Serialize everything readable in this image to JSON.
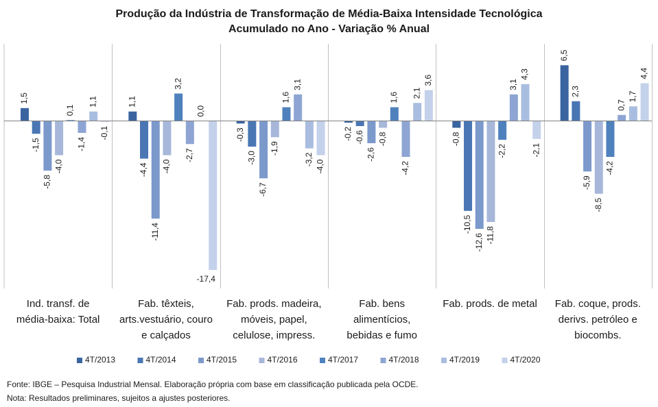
{
  "chart_data": {
    "type": "bar",
    "title": "Produção da Indústria de Transformação de Média-Baixa Intensidade Tecnológica",
    "subtitle": "Acumulado no Ano - Variação % Anual",
    "categories": [
      [
        "Ind. transf. de",
        "média-baixa: Total"
      ],
      [
        "Fab. têxteis,",
        "arts.vestuário, couro",
        "e calçados"
      ],
      [
        "Fab. prods. madeira,",
        "móveis, papel,",
        "celulose, impress."
      ],
      [
        "Fab. bens",
        "alimentícios,",
        "bebidas e fumo"
      ],
      [
        "Fab. prods. de metal"
      ],
      [
        "Fab. coque, prods.",
        "derivs. petróleo e",
        "biocombs."
      ]
    ],
    "series": [
      {
        "name": "4T/2013",
        "color": "#3a64a0",
        "values": [
          1.5,
          1.1,
          -0.3,
          -0.2,
          -0.8,
          6.5
        ],
        "labels": [
          "1,5",
          "1,1",
          "-0,3",
          "-0,2",
          "-0,8",
          "6,5"
        ]
      },
      {
        "name": "4T/2014",
        "color": "#4a76b4",
        "values": [
          -1.5,
          -4.4,
          -3.0,
          -0.6,
          -10.5,
          2.3
        ],
        "labels": [
          "-1,5",
          "-4,4",
          "-3,0",
          "-0,6",
          "-10,5",
          "2,3"
        ]
      },
      {
        "name": "4T/2015",
        "color": "#7c99cc",
        "values": [
          -5.8,
          -11.4,
          -6.7,
          -2.6,
          -12.6,
          -5.9
        ],
        "labels": [
          "-5,8",
          "-11,4",
          "-6,7",
          "-2,6",
          "-12,6",
          "-5,9"
        ]
      },
      {
        "name": "4T/2016",
        "color": "#a7b7da",
        "values": [
          -4.0,
          -4.0,
          -1.9,
          -0.8,
          -11.8,
          -8.5
        ],
        "labels": [
          "-4,0",
          "-4,0",
          "-1,9",
          "-0,8",
          "-11,8",
          "-8,5"
        ]
      },
      {
        "name": "4T/2017",
        "color": "#4f81bd",
        "values": [
          0.1,
          3.2,
          1.6,
          1.6,
          -2.2,
          -4.2
        ],
        "labels": [
          "0,1",
          "3,2",
          "1,6",
          "1,6",
          "-2,2",
          "-4,2"
        ]
      },
      {
        "name": "4T/2018",
        "color": "#8ea5d3",
        "values": [
          -1.4,
          -2.7,
          3.1,
          -4.2,
          3.1,
          0.7
        ],
        "labels": [
          "-1,4",
          "-2,7",
          "3,1",
          "-4,2",
          "3,1",
          "0,7"
        ]
      },
      {
        "name": "4T/2019",
        "color": "#a9bde0",
        "values": [
          1.1,
          0.0,
          -3.2,
          2.1,
          4.3,
          1.7
        ],
        "labels": [
          "1,1",
          "0,0",
          "-3,2",
          "2,1",
          "4,3",
          "1,7"
        ]
      },
      {
        "name": "4T/2020",
        "color": "#c4d1ea",
        "values": [
          -0.1,
          -17.4,
          -4.0,
          3.6,
          -2.1,
          4.4
        ],
        "labels": [
          "-0,1",
          "-17,4",
          "-4,0",
          "3,6",
          "-2,1",
          "4,4"
        ]
      }
    ],
    "ylim": [
      -19,
      8
    ],
    "grid": false,
    "legend_position": "bottom"
  },
  "footnotes": {
    "source": "Fonte: IBGE – Pesquisa Industrial Mensal. Elaboração própria com base em classificação publicada pela OCDE.",
    "note": "Nota: Resultados preliminares, sujeitos a ajustes posteriores."
  }
}
